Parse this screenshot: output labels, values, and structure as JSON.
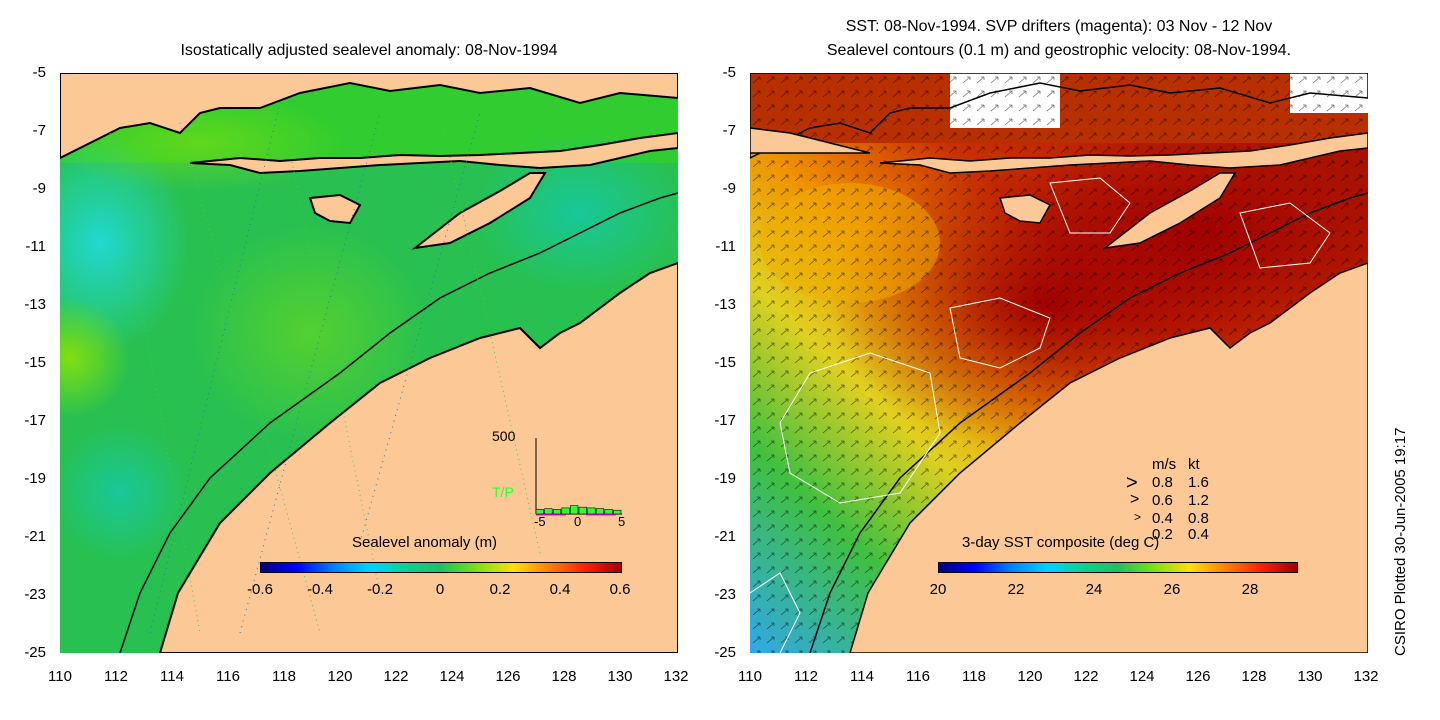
{
  "left_panel": {
    "title": "Isostatically adjusted sealevel anomaly: 08-Nov-1994",
    "colorbar_label": "Sealevel anomaly (m)",
    "colorbar_ticks": [
      "-0.6",
      "-0.4",
      "-0.2",
      "0",
      "0.2",
      "0.4",
      "0.6"
    ],
    "inset": {
      "y_label": "500",
      "source_label": "T/P",
      "x_ticks": [
        "-5",
        "0",
        "5"
      ],
      "bar_values": [
        30,
        35,
        30,
        40,
        55,
        45,
        40,
        35,
        30,
        25
      ]
    }
  },
  "right_panel": {
    "title_line1": "SST: 08-Nov-1994. SVP drifters (magenta): 03 Nov - 12 Nov",
    "title_line2": "Sealevel contours (0.1 m) and geostrophic velocity: 08-Nov-1994.",
    "colorbar_label": "3-day SST composite (deg C)",
    "colorbar_ticks": [
      "20",
      "22",
      "24",
      "26",
      "28"
    ],
    "velocity_legend": {
      "header_ms": "m/s",
      "header_kt": "kt",
      "rows": [
        {
          "ms": "0.8",
          "kt": "1.6"
        },
        {
          "ms": "0.6",
          "kt": "1.2"
        },
        {
          "ms": "0.4",
          "kt": "0.8"
        },
        {
          "ms": "0.2",
          "kt": "0.4"
        }
      ]
    }
  },
  "axes": {
    "y_ticks": [
      "-5",
      "-7",
      "-9",
      "-11",
      "-13",
      "-15",
      "-17",
      "-19",
      "-21",
      "-23",
      "-25"
    ],
    "x_ticks": [
      "110",
      "112",
      "114",
      "116",
      "118",
      "120",
      "122",
      "124",
      "126",
      "128",
      "130",
      "132"
    ],
    "lon_range": [
      110,
      132
    ],
    "lat_range": [
      -25,
      -5
    ]
  },
  "credit": "CSIRO Plotted 30-Jun-2005 19:17",
  "colors": {
    "land": "#fcc896",
    "sla_ocean": "#22c84a",
    "sst_warm": "#a00a00",
    "sst_mid": "#e87800",
    "sst_cool": "#30b0e0"
  }
}
